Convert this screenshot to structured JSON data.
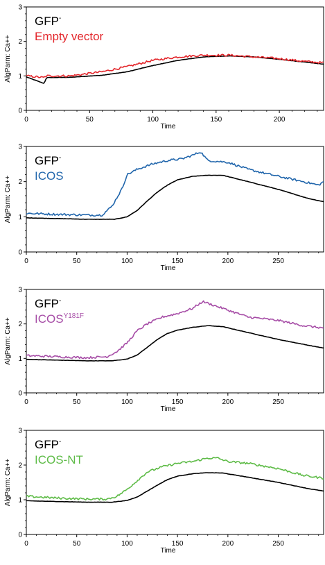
{
  "colors": {
    "reference": "#000000",
    "empty_vector": "#e3262b",
    "icos": "#2166ac",
    "icos_y181f": "#a64ca6",
    "icos_nt": "#5dbb46"
  },
  "chart_data": [
    {
      "type": "line",
      "xlabel": "Time",
      "ylabel": "AlgParm: Ca++",
      "xlim": [
        0,
        235
      ],
      "ylim": [
        0,
        3
      ],
      "xticks": [
        0,
        50,
        100,
        150,
        200
      ],
      "yticks": [
        0,
        1,
        2,
        3
      ],
      "grid": false,
      "legend": "top-left",
      "series": [
        {
          "name": "GFP-",
          "name_main": "GFP",
          "name_sup": "-",
          "color_key": "reference",
          "x": [
            0,
            14,
            16,
            35,
            60,
            80,
            100,
            120,
            140,
            160,
            180,
            200,
            220,
            235
          ],
          "y": [
            0.97,
            0.78,
            0.95,
            0.96,
            1.02,
            1.12,
            1.3,
            1.45,
            1.55,
            1.58,
            1.55,
            1.48,
            1.4,
            1.34
          ]
        },
        {
          "name": "Empty vector",
          "name_main": "Empty vector",
          "name_sup": "",
          "color_key": "empty_vector",
          "x": [
            0,
            14,
            16,
            35,
            60,
            80,
            100,
            120,
            140,
            160,
            180,
            200,
            220,
            235
          ],
          "y": [
            1.0,
            0.95,
            1.0,
            1.0,
            1.12,
            1.27,
            1.45,
            1.55,
            1.6,
            1.6,
            1.55,
            1.5,
            1.42,
            1.38
          ]
        }
      ]
    },
    {
      "type": "line",
      "xlabel": "Time",
      "ylabel": "AlgParm: Ca++",
      "xlim": [
        0,
        295
      ],
      "ylim": [
        0,
        3
      ],
      "xticks": [
        0,
        50,
        100,
        150,
        200,
        250
      ],
      "yticks": [
        0,
        1,
        2,
        3
      ],
      "grid": false,
      "legend": "top-left",
      "series": [
        {
          "name": "GFP-",
          "name_main": "GFP",
          "name_sup": "-",
          "color_key": "reference",
          "x": [
            0,
            30,
            60,
            88,
            100,
            110,
            120,
            130,
            140,
            150,
            165,
            180,
            195,
            220,
            250,
            280,
            295
          ],
          "y": [
            0.97,
            0.95,
            0.93,
            0.93,
            1.0,
            1.18,
            1.45,
            1.7,
            1.9,
            2.05,
            2.15,
            2.18,
            2.18,
            2.0,
            1.78,
            1.52,
            1.43
          ]
        },
        {
          "name": "ICOS",
          "name_main": "ICOS",
          "name_sup": "",
          "color_key": "icos",
          "x": [
            0,
            30,
            60,
            75,
            85,
            95,
            100,
            110,
            125,
            140,
            155,
            165,
            173,
            180,
            200,
            220,
            250,
            275,
            290,
            295
          ],
          "y": [
            1.1,
            1.07,
            1.05,
            1.05,
            1.3,
            1.8,
            2.2,
            2.35,
            2.5,
            2.6,
            2.65,
            2.75,
            2.85,
            2.6,
            2.55,
            2.35,
            2.15,
            2.0,
            1.9,
            2.0
          ]
        }
      ]
    },
    {
      "type": "line",
      "xlabel": "Time",
      "ylabel": "AlgParm: Ca++",
      "xlim": [
        0,
        295
      ],
      "ylim": [
        0,
        3
      ],
      "xticks": [
        0,
        50,
        100,
        150,
        200,
        250
      ],
      "yticks": [
        0,
        1,
        2,
        3
      ],
      "grid": false,
      "legend": "top-left",
      "series": [
        {
          "name": "GFP-",
          "name_main": "GFP",
          "name_sup": "-",
          "color_key": "reference",
          "x": [
            0,
            30,
            60,
            85,
            100,
            110,
            120,
            130,
            140,
            150,
            165,
            180,
            195,
            220,
            250,
            280,
            295
          ],
          "y": [
            0.97,
            0.95,
            0.93,
            0.93,
            0.98,
            1.1,
            1.32,
            1.55,
            1.72,
            1.82,
            1.9,
            1.95,
            1.92,
            1.75,
            1.55,
            1.38,
            1.3
          ]
        },
        {
          "name": "ICOSY181F",
          "name_main": "ICOS",
          "name_sup": "Y181F",
          "color_key": "icos_y181f",
          "x": [
            0,
            30,
            60,
            80,
            90,
            100,
            110,
            120,
            135,
            150,
            165,
            175,
            190,
            200,
            220,
            250,
            275,
            295
          ],
          "y": [
            1.08,
            1.05,
            1.02,
            1.05,
            1.2,
            1.45,
            1.8,
            2.0,
            2.2,
            2.3,
            2.45,
            2.65,
            2.5,
            2.4,
            2.2,
            2.1,
            1.95,
            1.88
          ]
        }
      ]
    },
    {
      "type": "line",
      "xlabel": "Time",
      "ylabel": "AlgParm: Ca++",
      "xlim": [
        0,
        295
      ],
      "ylim": [
        0,
        3
      ],
      "xticks": [
        0,
        50,
        100,
        150,
        200,
        250
      ],
      "yticks": [
        0,
        1,
        2,
        3
      ],
      "grid": false,
      "legend": "top-left",
      "series": [
        {
          "name": "GFP-",
          "name_main": "GFP",
          "name_sup": "-",
          "color_key": "reference",
          "x": [
            0,
            30,
            60,
            85,
            100,
            110,
            120,
            130,
            140,
            150,
            165,
            180,
            195,
            220,
            250,
            280,
            295
          ],
          "y": [
            0.97,
            0.95,
            0.93,
            0.93,
            0.98,
            1.08,
            1.25,
            1.42,
            1.58,
            1.68,
            1.75,
            1.78,
            1.77,
            1.65,
            1.5,
            1.32,
            1.25
          ]
        },
        {
          "name": "ICOS-NT",
          "name_main": "ICOS-NT",
          "name_sup": "",
          "color_key": "icos_nt",
          "x": [
            0,
            30,
            60,
            80,
            90,
            100,
            110,
            120,
            135,
            150,
            165,
            180,
            190,
            200,
            220,
            250,
            275,
            295
          ],
          "y": [
            1.1,
            1.05,
            1.02,
            1.02,
            1.1,
            1.3,
            1.55,
            1.8,
            1.95,
            2.05,
            2.1,
            2.2,
            2.2,
            2.1,
            2.05,
            1.9,
            1.7,
            1.62
          ]
        }
      ]
    }
  ]
}
